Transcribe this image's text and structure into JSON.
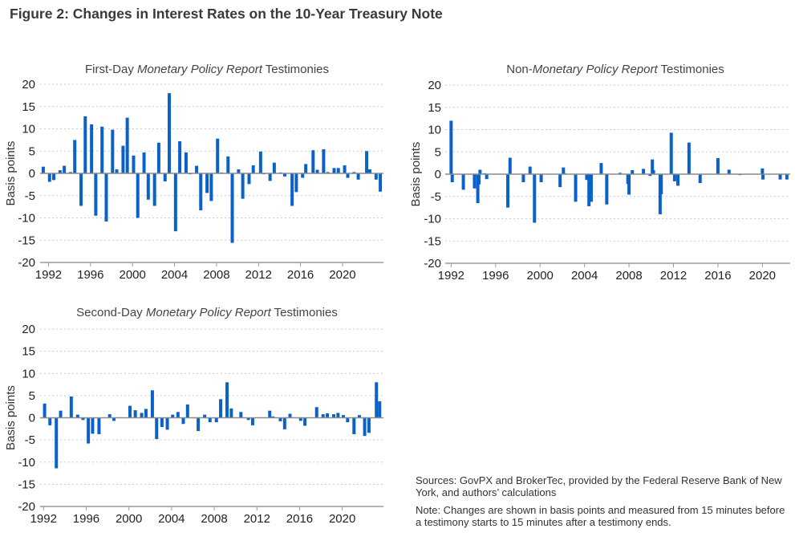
{
  "figure_title": "Figure 2: Changes in Interest Rates on the 10-Year Treasury Note",
  "sources": "Sources: GovPX and BrokerTec, provided by the Federal Reserve Bank of New York, and authors’ calculations",
  "note": "Note: Changes are shown in basis points and measured from 15 minutes before a testimony starts to 15 minutes after a testimony ends.",
  "colors": {
    "bar": "#0a62c9",
    "grid": "#c8c8c8",
    "zero_line": "#8a8a8a",
    "axis": "#999999"
  },
  "chart_data": [
    {
      "type": "bar",
      "title_parts": [
        "First-Day ",
        "Monetary Policy Report",
        " Testimonies"
      ],
      "ylabel": "Basis points",
      "ylim": [
        -20,
        20
      ],
      "yticks": [
        "20",
        "15",
        "10",
        "5",
        "0",
        "-5",
        "-10",
        "-15",
        "-20"
      ],
      "xticks": [
        "1992",
        "1996",
        "2000",
        "2004",
        "2008",
        "2012",
        "2016",
        "2020"
      ],
      "xlim": [
        1991.2,
        2023.9
      ],
      "grid": true,
      "x": [
        1991.5,
        1992.1,
        1992.5,
        1993.1,
        1993.5,
        1994.1,
        1994.5,
        1995.1,
        1995.5,
        1996.1,
        1996.5,
        1997.1,
        1997.5,
        1998.1,
        1998.5,
        1999.1,
        1999.5,
        2000.1,
        2000.5,
        2001.1,
        2001.5,
        2002.1,
        2002.5,
        2003.1,
        2003.5,
        2004.1,
        2004.5,
        2005.1,
        2005.5,
        2006.1,
        2006.5,
        2007.1,
        2007.5,
        2008.1,
        2008.5,
        2009.1,
        2009.5,
        2010.1,
        2010.5,
        2011.1,
        2011.5,
        2012.2,
        2012.5,
        2013.1,
        2013.5,
        2014.1,
        2014.5,
        2015.2,
        2015.6,
        2016.2,
        2016.5,
        2017.2,
        2017.6,
        2018.2,
        2018.6,
        2019.2,
        2019.6,
        2020.2,
        2020.5,
        2021.1,
        2021.5,
        2022.3,
        2022.6,
        2023.2,
        2023.6
      ],
      "values": [
        1.5,
        -1.9,
        -1.5,
        0.7,
        1.7,
        0.3,
        7.5,
        -7.3,
        12.8,
        11.0,
        -9.5,
        10.5,
        -10.8,
        9.8,
        0.9,
        6.2,
        12.5,
        4.0,
        -10.0,
        4.7,
        -5.9,
        -7.3,
        6.9,
        -1.8,
        18.0,
        -13.0,
        7.2,
        4.7,
        -0.2,
        1.7,
        -8.3,
        -4.4,
        -6.2,
        7.8,
        0.2,
        3.8,
        -15.6,
        0.9,
        -5.7,
        -2.4,
        1.8,
        4.9,
        -0.2,
        -1.7,
        2.4,
        0.2,
        -0.7,
        -7.3,
        -4.2,
        -1.0,
        2.1,
        5.2,
        0.8,
        5.4,
        0.3,
        1.2,
        1.2,
        1.8,
        -1.0,
        0.3,
        -1.4,
        5.0,
        0.9,
        -1.4,
        -4.1
      ]
    },
    {
      "type": "bar",
      "title_parts": [
        "Non-",
        "Monetary Policy Report",
        " Testimonies"
      ],
      "ylabel": "Basis points",
      "ylim": [
        -20,
        20
      ],
      "yticks": [
        "20",
        "15",
        "10",
        "5",
        "0",
        "-5",
        "-10",
        "-15",
        "-20"
      ],
      "xticks": [
        "1992",
        "1996",
        "2000",
        "2004",
        "2008",
        "2012",
        "2016",
        "2020"
      ],
      "xlim": [
        1991.47,
        2022.5
      ],
      "grid": true,
      "x": [
        1992.0,
        1992.1,
        1993.1,
        1994.1,
        1994.4,
        1994.5,
        1994.6,
        1995.0,
        1995.2,
        1996.3,
        1997.1,
        1997.3,
        1998.5,
        1999.1,
        1999.5,
        2000.1,
        2001.8,
        2002.1,
        2002.2,
        2003.2,
        2004.2,
        2004.4,
        2004.6,
        2005.5,
        2006.0,
        2007.2,
        2007.9,
        2008.0,
        2008.3,
        2009.3,
        2009.9,
        2010.1,
        2010.2,
        2010.8,
        2010.9,
        2011.8,
        2012.1,
        2012.4,
        2013.4,
        2014.4,
        2016.0,
        2017.0,
        2018.0,
        2020.0,
        2020.05,
        2021.6,
        2022.2
      ],
      "values": [
        12.0,
        -1.8,
        -3.5,
        -3.2,
        -6.5,
        -2.3,
        1.0,
        0.2,
        -1.1,
        0.1,
        -7.5,
        3.7,
        -1.8,
        1.7,
        -10.9,
        -1.8,
        -2.9,
        1.5,
        0.2,
        -6.2,
        -1.3,
        -7.2,
        -6.2,
        2.5,
        -6.8,
        0.3,
        -2.2,
        -4.6,
        0.9,
        1.2,
        -0.4,
        3.3,
        0.9,
        -9.0,
        -4.5,
        9.3,
        -1.6,
        -2.6,
        7.1,
        -2.0,
        3.6,
        1.0,
        -0.2,
        1.3,
        -1.2,
        -1.2,
        -1.2
      ]
    },
    {
      "type": "bar",
      "title_parts": [
        "Second-Day ",
        "Monetary Policy Report",
        " Testimonies"
      ],
      "ylabel": "Basis points",
      "ylim": [
        -20,
        20
      ],
      "yticks": [
        "20",
        "15",
        "10",
        "5",
        "0",
        "-5",
        "-10",
        "-15",
        "-20"
      ],
      "xticks": [
        "1992",
        "1996",
        "2000",
        "2004",
        "2008",
        "2012",
        "2016",
        "2020"
      ],
      "xlim": [
        1991.68,
        2023.86
      ],
      "grid": true,
      "x": [
        1992.1,
        1992.6,
        1993.2,
        1993.6,
        1994.6,
        1995.2,
        1995.7,
        1996.2,
        1996.6,
        1997.2,
        1998.2,
        1998.6,
        1999.2,
        2000.1,
        2000.6,
        2001.2,
        2001.6,
        2002.2,
        2002.6,
        2003.1,
        2003.6,
        2004.1,
        2004.6,
        2005.1,
        2005.5,
        2006.1,
        2006.5,
        2007.1,
        2007.6,
        2008.2,
        2008.6,
        2009.2,
        2009.6,
        2010.5,
        2011.2,
        2011.6,
        2012.5,
        2013.2,
        2013.5,
        2014.2,
        2014.6,
        2015.1,
        2015.5,
        2016.1,
        2016.5,
        2017.6,
        2018.2,
        2018.6,
        2019.2,
        2019.6,
        2020.1,
        2020.5,
        2021.1,
        2021.6,
        2022.1,
        2022.5,
        2023.2,
        2023.5
      ],
      "values": [
        3.2,
        -1.7,
        -11.4,
        1.6,
        4.8,
        0.7,
        -0.5,
        -5.8,
        -3.6,
        -3.7,
        0.8,
        -0.7,
        0.1,
        2.7,
        1.7,
        1.1,
        2.0,
        6.2,
        -4.8,
        -2.1,
        -2.7,
        0.7,
        1.3,
        -1.4,
        3.0,
        0.1,
        -3.0,
        0.7,
        -1.0,
        -1.0,
        4.2,
        8.0,
        2.1,
        1.3,
        -0.5,
        -1.7,
        0.1,
        1.6,
        0.3,
        -0.8,
        -2.6,
        0.9,
        0.1,
        -0.7,
        -1.8,
        2.4,
        0.8,
        1.0,
        0.8,
        1.1,
        0.6,
        -1.0,
        -3.7,
        0.6,
        -4.1,
        -3.4,
        8.0,
        3.7
      ]
    }
  ]
}
